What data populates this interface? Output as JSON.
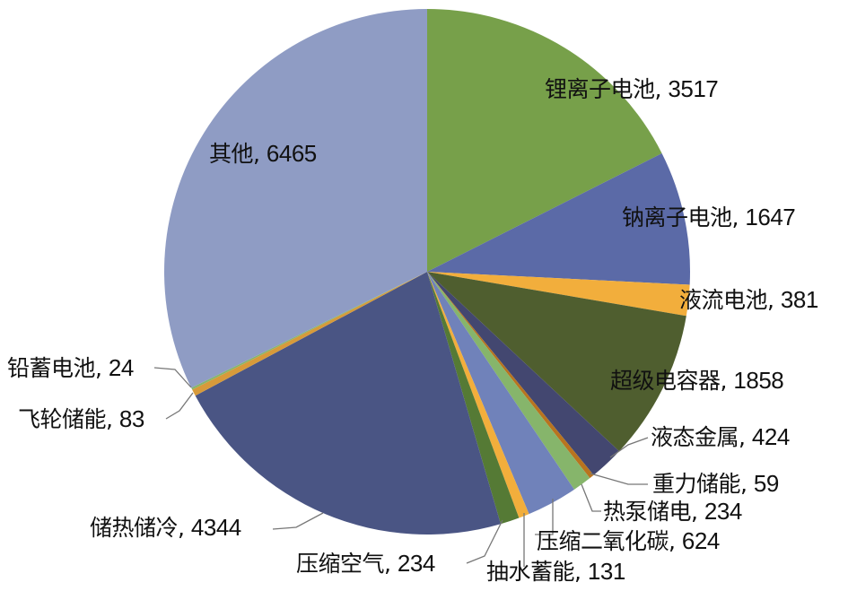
{
  "chart_data": {
    "type": "pie",
    "start": "12 o'clock, clockwise",
    "slices": [
      {
        "label": "锂离子电池",
        "value": 3517,
        "color": "#77a04a"
      },
      {
        "label": "钠离子电池",
        "value": 1647,
        "color": "#5b6aa7"
      },
      {
        "label": "液流电池",
        "value": 381,
        "color": "#f2ae3c"
      },
      {
        "label": "超级电容器",
        "value": 1858,
        "color": "#4f5e2f"
      },
      {
        "label": "液态金属",
        "value": 424,
        "color": "#434770"
      },
      {
        "label": "重力储能",
        "value": 59,
        "color": "#b8741f"
      },
      {
        "label": "热泵储电",
        "value": 234,
        "color": "#86b56b"
      },
      {
        "label": "压缩二氧化碳",
        "value": 624,
        "color": "#7082ba"
      },
      {
        "label": "抽水蓄能",
        "value": 131,
        "color": "#f2ae3c"
      },
      {
        "label": "压缩空气",
        "value": 234,
        "color": "#557a35"
      },
      {
        "label": "储热储冷",
        "value": 4344,
        "color": "#4a5584"
      },
      {
        "label": "飞轮储能",
        "value": 83,
        "color": "#d79a3a"
      },
      {
        "label": "铅蓄电池",
        "value": 24,
        "color": "#86b56b"
      },
      {
        "label": "其他",
        "value": 6465,
        "color": "#8f9cc4"
      }
    ],
    "separator": ", "
  }
}
